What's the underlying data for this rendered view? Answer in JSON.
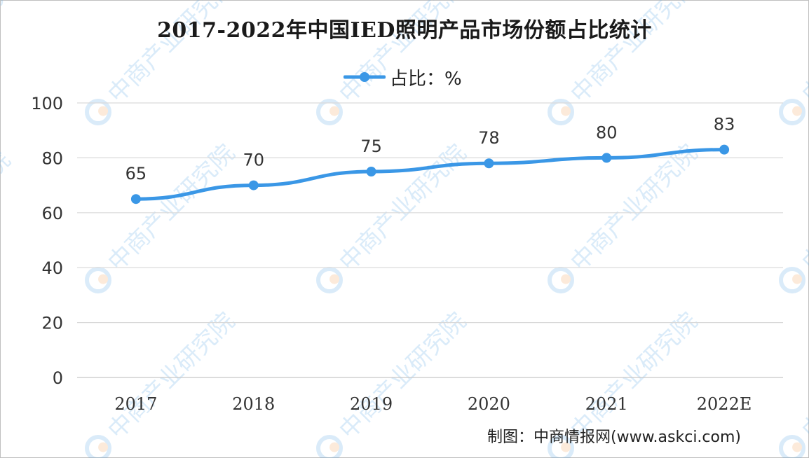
{
  "chart_data": {
    "type": "line",
    "title": "2017-2022年中国IED照明产品市场份额占比统计",
    "categories": [
      "2017",
      "2018",
      "2019",
      "2020",
      "2021",
      "2022E"
    ],
    "series": [
      {
        "name": "占比：%",
        "values": [
          65,
          70,
          75,
          78,
          80,
          83
        ],
        "color": "#3a97e6"
      }
    ],
    "ylim": [
      0,
      100
    ],
    "yticks": [
      0,
      20,
      40,
      60,
      80,
      100
    ],
    "grid": true,
    "legend_position": "top-center"
  },
  "footer": {
    "source": "制图：中商情报网(www.askci.com)"
  },
  "watermark": {
    "text": "中商产业研究院"
  }
}
